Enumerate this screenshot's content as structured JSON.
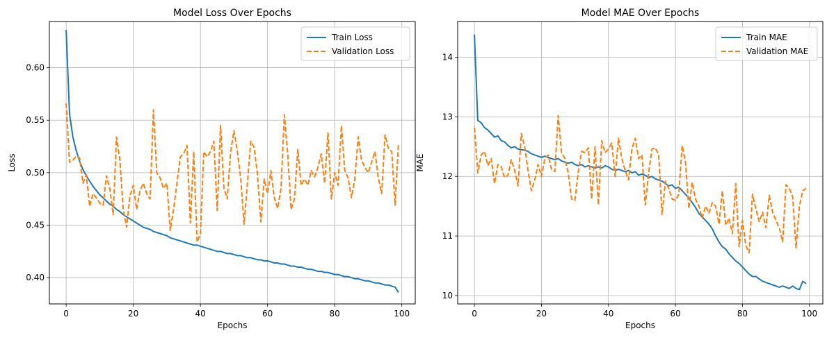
{
  "chart_data": [
    {
      "type": "line",
      "title": "Model Loss Over Epochs",
      "xlabel": "Epochs",
      "ylabel": "Loss",
      "xlim": [
        -5,
        104
      ],
      "ylim": [
        0.375,
        0.644
      ],
      "xticks": [
        0,
        20,
        40,
        60,
        80,
        100
      ],
      "yticks": [
        0.4,
        0.45,
        0.5,
        0.55,
        0.6
      ],
      "ytick_labels": [
        "0.40",
        "0.45",
        "0.50",
        "0.55",
        "0.60"
      ],
      "grid": true,
      "legend_position": "top-right",
      "series": [
        {
          "name": "Train Loss",
          "color": "#1f77b4",
          "style": "solid",
          "values": [
            0.636,
            0.556,
            0.534,
            0.521,
            0.511,
            0.503,
            0.497,
            0.492,
            0.487,
            0.483,
            0.479,
            0.476,
            0.473,
            0.47,
            0.468,
            0.465,
            0.463,
            0.46,
            0.458,
            0.456,
            0.454,
            0.452,
            0.45,
            0.448,
            0.447,
            0.446,
            0.444,
            0.443,
            0.442,
            0.441,
            0.44,
            0.438,
            0.437,
            0.436,
            0.435,
            0.434,
            0.433,
            0.432,
            0.431,
            0.431,
            0.43,
            0.429,
            0.428,
            0.427,
            0.426,
            0.425,
            0.425,
            0.424,
            0.423,
            0.423,
            0.422,
            0.421,
            0.421,
            0.42,
            0.419,
            0.419,
            0.418,
            0.417,
            0.417,
            0.416,
            0.416,
            0.415,
            0.414,
            0.414,
            0.413,
            0.413,
            0.412,
            0.411,
            0.411,
            0.41,
            0.41,
            0.409,
            0.408,
            0.408,
            0.407,
            0.406,
            0.406,
            0.405,
            0.405,
            0.404,
            0.403,
            0.403,
            0.402,
            0.401,
            0.401,
            0.4,
            0.399,
            0.399,
            0.398,
            0.397,
            0.397,
            0.396,
            0.395,
            0.395,
            0.394,
            0.393,
            0.393,
            0.392,
            0.391,
            0.386
          ]
        },
        {
          "name": "Validation Loss",
          "color": "#ff7f0e",
          "style": "dashed",
          "values": [
            0.566,
            0.51,
            0.512,
            0.516,
            0.514,
            0.49,
            0.498,
            0.468,
            0.48,
            0.476,
            0.471,
            0.469,
            0.497,
            0.485,
            0.46,
            0.534,
            0.512,
            0.465,
            0.448,
            0.478,
            0.488,
            0.465,
            0.483,
            0.49,
            0.48,
            0.475,
            0.56,
            0.5,
            0.495,
            0.485,
            0.49,
            0.445,
            0.465,
            0.49,
            0.515,
            0.518,
            0.526,
            0.452,
            0.52,
            0.434,
            0.442,
            0.52,
            0.515,
            0.52,
            0.53,
            0.464,
            0.545,
            0.485,
            0.475,
            0.52,
            0.54,
            0.52,
            0.495,
            0.451,
            0.49,
            0.53,
            0.524,
            0.498,
            0.453,
            0.494,
            0.48,
            0.502,
            0.476,
            0.466,
            0.485,
            0.555,
            0.518,
            0.465,
            0.475,
            0.522,
            0.488,
            0.494,
            0.488,
            0.502,
            0.496,
            0.505,
            0.518,
            0.49,
            0.538,
            0.475,
            0.5,
            0.488,
            0.545,
            0.502,
            0.495,
            0.476,
            0.494,
            0.534,
            0.512,
            0.505,
            0.5,
            0.51,
            0.52,
            0.495,
            0.48,
            0.536,
            0.523,
            0.52,
            0.469,
            0.528
          ]
        }
      ]
    },
    {
      "type": "line",
      "title": "Model MAE Over Epochs",
      "xlabel": "Epochs",
      "ylabel": "MAE",
      "xlim": [
        -5,
        104
      ],
      "ylim": [
        9.86,
        14.6
      ],
      "xticks": [
        0,
        20,
        40,
        60,
        80,
        100
      ],
      "yticks": [
        10,
        11,
        12,
        13,
        14
      ],
      "ytick_labels": [
        "10",
        "11",
        "12",
        "13",
        "14"
      ],
      "grid": true,
      "legend_position": "top-right",
      "series": [
        {
          "name": "Train MAE",
          "color": "#1f77b4",
          "style": "solid",
          "values": [
            14.38,
            12.94,
            12.9,
            12.82,
            12.78,
            12.72,
            12.66,
            12.68,
            12.6,
            12.58,
            12.52,
            12.48,
            12.5,
            12.46,
            12.45,
            12.44,
            12.42,
            12.38,
            12.36,
            12.34,
            12.32,
            12.34,
            12.32,
            12.3,
            12.28,
            12.3,
            12.26,
            12.24,
            12.22,
            12.24,
            12.2,
            12.18,
            12.2,
            12.16,
            12.18,
            12.16,
            12.14,
            12.16,
            12.14,
            12.18,
            12.16,
            12.12,
            12.1,
            12.12,
            12.1,
            12.08,
            12.1,
            12.06,
            12.08,
            12.02,
            12.04,
            12.02,
            11.98,
            12.0,
            11.96,
            11.94,
            11.92,
            11.88,
            11.84,
            11.86,
            11.8,
            11.82,
            11.76,
            11.7,
            11.64,
            11.56,
            11.48,
            11.38,
            11.32,
            11.26,
            11.2,
            11.12,
            11.0,
            10.9,
            10.82,
            10.78,
            10.7,
            10.64,
            10.58,
            10.54,
            10.48,
            10.42,
            10.36,
            10.32,
            10.32,
            10.28,
            10.24,
            10.22,
            10.2,
            10.18,
            10.16,
            10.14,
            10.16,
            10.14,
            10.12,
            10.16,
            10.12,
            10.1,
            10.24,
            10.2
          ]
        },
        {
          "name": "Validation MAE",
          "color": "#ff7f0e",
          "style": "dashed",
          "values": [
            12.82,
            12.06,
            12.36,
            12.42,
            12.18,
            12.3,
            11.88,
            12.2,
            12.16,
            11.98,
            12.02,
            12.28,
            12.1,
            11.84,
            12.72,
            12.5,
            12.1,
            11.76,
            11.94,
            12.2,
            12.0,
            12.3,
            12.36,
            12.12,
            12.08,
            13.02,
            12.4,
            12.3,
            12.06,
            11.62,
            11.6,
            12.08,
            12.42,
            12.4,
            12.48,
            11.62,
            12.5,
            11.52,
            12.6,
            12.4,
            12.46,
            12.56,
            12.0,
            12.64,
            12.3,
            12.1,
            11.94,
            12.46,
            12.64,
            12.3,
            12.36,
            11.52,
            12.06,
            12.46,
            12.48,
            12.36,
            11.36,
            11.92,
            11.8,
            11.62,
            11.6,
            11.7,
            12.52,
            12.24,
            11.46,
            11.9,
            11.62,
            11.5,
            11.3,
            11.5,
            11.38,
            11.56,
            11.5,
            11.2,
            11.76,
            11.18,
            11.3,
            11.04,
            11.88,
            10.82,
            11.26,
            10.84,
            10.72,
            11.7,
            11.46,
            11.24,
            11.4,
            11.14,
            11.68,
            11.4,
            11.26,
            11.14,
            10.9,
            11.86,
            11.8,
            11.66,
            10.8,
            11.5,
            11.76,
            11.8
          ]
        }
      ]
    }
  ]
}
